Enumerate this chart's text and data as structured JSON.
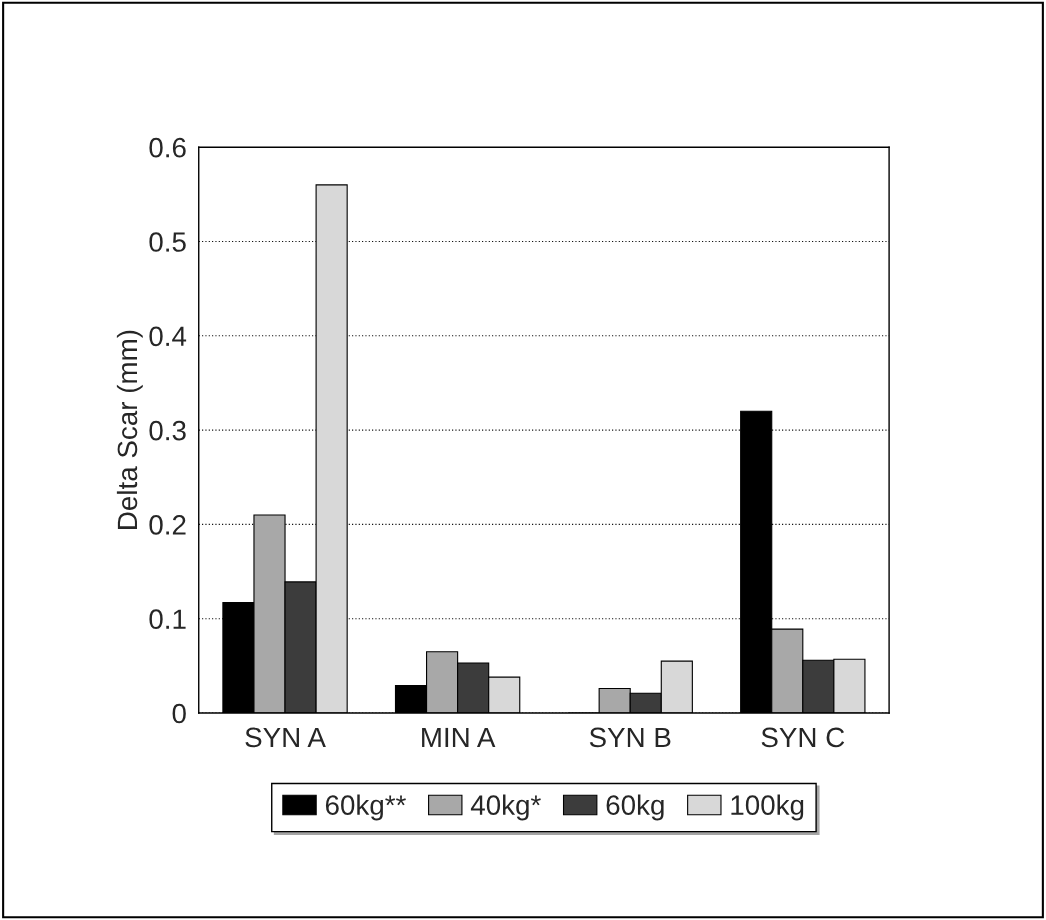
{
  "chart_data": {
    "type": "bar",
    "ylabel": "Delta Scar (mm)",
    "categories": [
      "SYN A",
      "MIN A",
      "SYN B",
      "SYN C"
    ],
    "series": [
      {
        "name": "60kg**",
        "color": "#000000",
        "values": [
          0.117,
          0.029,
          0,
          0.32
        ]
      },
      {
        "name": "40kg*",
        "color": "#a8a8a8",
        "values": [
          0.21,
          0.065,
          0.026,
          0.089
        ]
      },
      {
        "name": "60kg",
        "color": "#3c3c3c",
        "values": [
          0.139,
          0.053,
          0.021,
          0.056
        ]
      },
      {
        "name": "100kg",
        "color": "#d8d8d8",
        "values": [
          0.56,
          0.038,
          0.055,
          0.057
        ]
      }
    ],
    "ylim": [
      0,
      0.6
    ],
    "yticks": [
      0,
      0.1,
      0.2,
      0.3,
      0.4,
      0.5,
      0.6
    ],
    "grid": "y",
    "legend": "bottom"
  }
}
